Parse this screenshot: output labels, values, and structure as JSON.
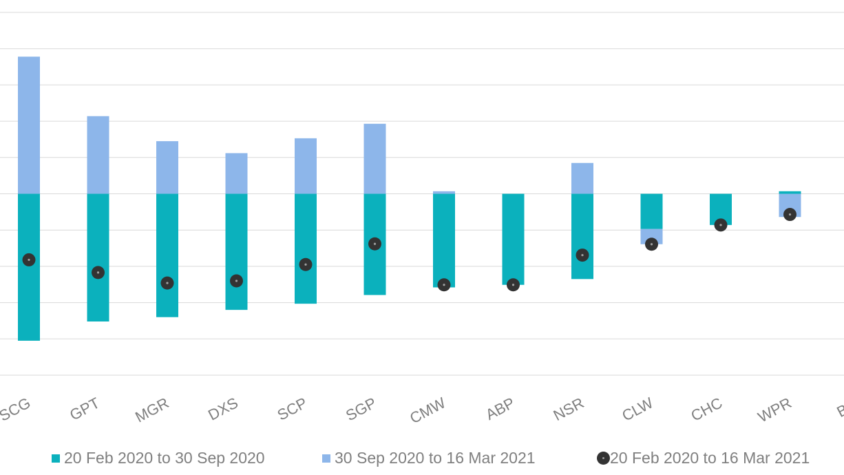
{
  "chart_data": {
    "type": "bar",
    "stacked": true,
    "categories": [
      "SCG",
      "GPT",
      "MGR",
      "DXS",
      "SCP",
      "SGP",
      "CMW",
      "ABP",
      "NSR",
      "CLW",
      "CHC",
      "WPR",
      "BW"
    ],
    "series": [
      {
        "name": "20 Feb 2020 to 30 Sep 2020",
        "kind": "bar",
        "color": "#0bb1bd",
        "values": [
          -40.5,
          -35.2,
          -34.0,
          -32.0,
          -30.3,
          -27.9,
          -25.8,
          -25.1,
          -23.5,
          -9.7,
          -8.6,
          0.7,
          null
        ]
      },
      {
        "name": "30 Sep 2020 to 16 Mar 2021",
        "kind": "bar",
        "color": "#8db6ea",
        "values": [
          37.8,
          21.4,
          14.5,
          11.2,
          15.3,
          19.3,
          0.7,
          0.0,
          8.5,
          -4.2,
          0.0,
          -6.4,
          null
        ]
      },
      {
        "name": "20 Feb 2020 to 16 Mar 2021",
        "kind": "point",
        "color": "#333333",
        "values": [
          -18.2,
          -21.7,
          -24.6,
          -24.0,
          -19.5,
          -13.8,
          -25.1,
          -25.1,
          -16.9,
          -13.9,
          -8.6,
          -5.7,
          null
        ]
      }
    ],
    "ylim": [
      -50,
      50
    ],
    "grid": true,
    "legend_position": "bottom",
    "title": "",
    "xlabel": "",
    "ylabel": ""
  }
}
